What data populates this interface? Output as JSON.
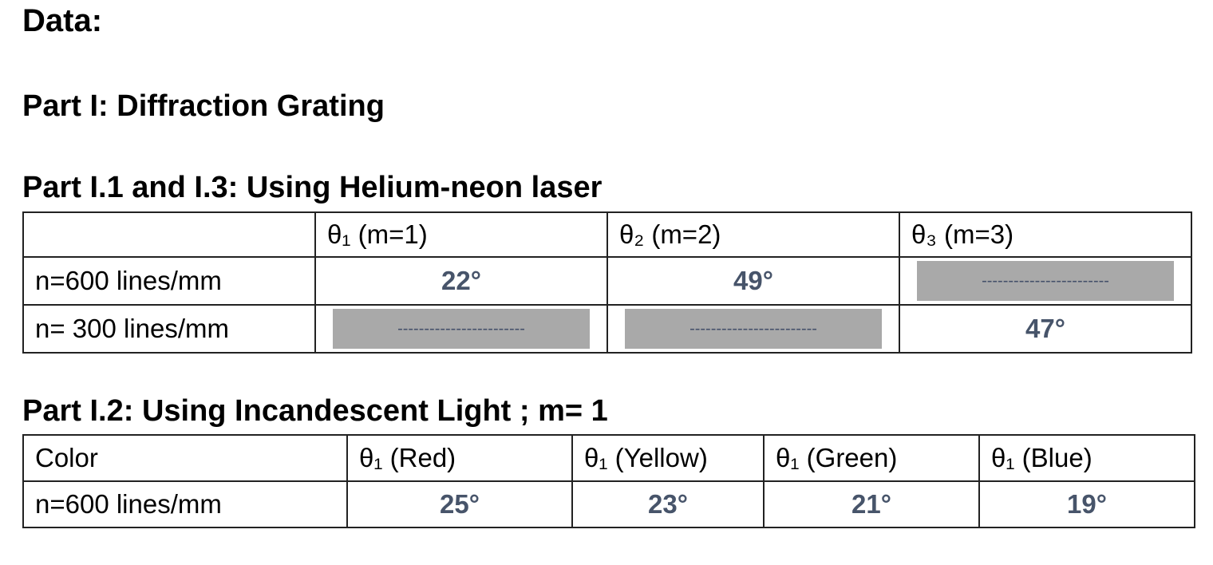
{
  "headings": {
    "data": "Data:",
    "part1": "Part I: Diffraction Grating",
    "part1_1_3": "Part I.1 and I.3: Using Helium-neon laser",
    "part1_2": "Part I.2: Using Incandescent Light ; m= 1"
  },
  "laser_table": {
    "headers": [
      "",
      "θ₁ (m=1)",
      "θ₂ (m=2)",
      "θ₃ (m=3)"
    ],
    "rows": [
      {
        "label": "n=600 lines/mm",
        "values": [
          "22°",
          "49°",
          "------------------------"
        ]
      },
      {
        "label": "n= 300 lines/mm",
        "values": [
          "------------------------",
          "------------------------",
          "47°"
        ]
      }
    ]
  },
  "incandescent_table": {
    "headers": [
      "Color",
      "θ₁ (Red)",
      "θ₁ (Yellow)",
      "θ₁ (Green)",
      "θ₁ (Blue)"
    ],
    "rows": [
      {
        "label": "n=600 lines/mm",
        "values": [
          "25°",
          "23°",
          "21°",
          "19°"
        ]
      }
    ]
  },
  "colors": {
    "value_text": "#47546a",
    "blank_fill": "#a9a9a9"
  }
}
